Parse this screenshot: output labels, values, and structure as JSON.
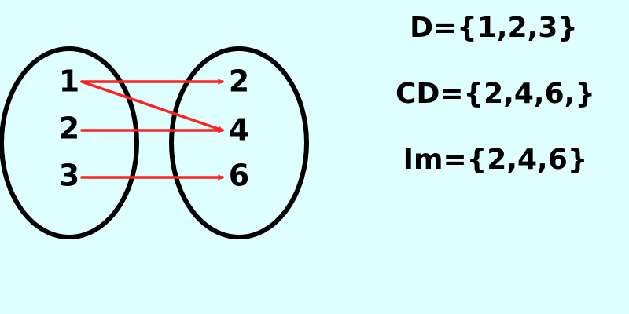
{
  "colors": {
    "background": "#DFFFFF",
    "ellipse_stroke": "#000000",
    "arrow": "#FF2020",
    "text": "#000000"
  },
  "domain_set": {
    "elements": [
      "1",
      "2",
      "3"
    ]
  },
  "codomain_set": {
    "elements": [
      "2",
      "4",
      "6"
    ]
  },
  "mapping": [
    {
      "from": "1",
      "to": "2"
    },
    {
      "from": "1",
      "to": "4"
    },
    {
      "from": "2",
      "to": "4"
    },
    {
      "from": "3",
      "to": "6"
    }
  ],
  "notation": {
    "domain": "D={1,2,3}",
    "codomain": "CD={2,4,6,}",
    "image": "Im={2,4,6}"
  }
}
